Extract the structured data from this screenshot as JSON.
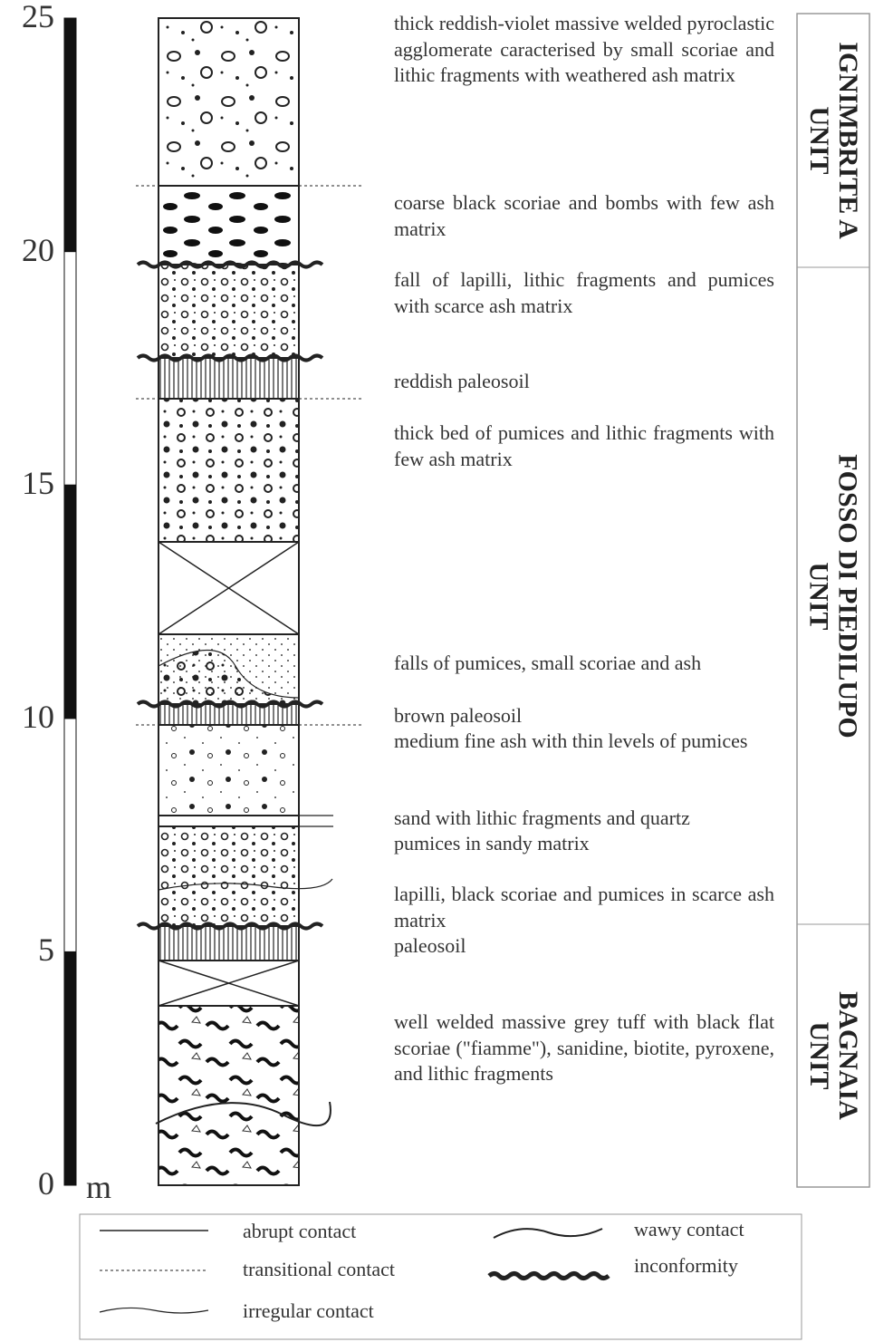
{
  "scale": {
    "ticks": [
      0,
      5,
      10,
      15,
      20,
      25
    ],
    "unit": "m"
  },
  "descriptions": [
    "thick reddish-violet massive welded pyroclastic agglomerate caracterised by small scoriae and lithic fragments with weathered ash matrix",
    "coarse black scoriae and bombs with few ash matrix",
    "fall of lapilli, lithic fragments and pumices with scarce ash matrix",
    "reddish paleosoil",
    "thick bed of pumices and lithic fragments with few ash matrix",
    "falls of pumices, small scoriae and ash",
    "brown paleosoil",
    "medium fine ash with thin levels of pumices",
    "sand with lithic fragments and quartz",
    "pumices in sandy matrix",
    "lapilli, black scoriae and pumices in scarce ash matrix",
    "paleosoil",
    "well welded massive grey tuff with black flat scoriae (\"fiamme\"), sanidine, biotite, pyroxene, and lithic fragments"
  ],
  "units": [
    {
      "lines": [
        "IGNIMBRITE A",
        "UNIT"
      ]
    },
    {
      "lines": [
        "FOSSO DI PIEDILUPO",
        "UNIT"
      ]
    },
    {
      "lines": [
        "BAGNAIA",
        "UNIT"
      ]
    }
  ],
  "legend": [
    "abrupt contact",
    "transitional contact",
    "irregular contact",
    "wawy contact",
    "inconformity"
  ]
}
